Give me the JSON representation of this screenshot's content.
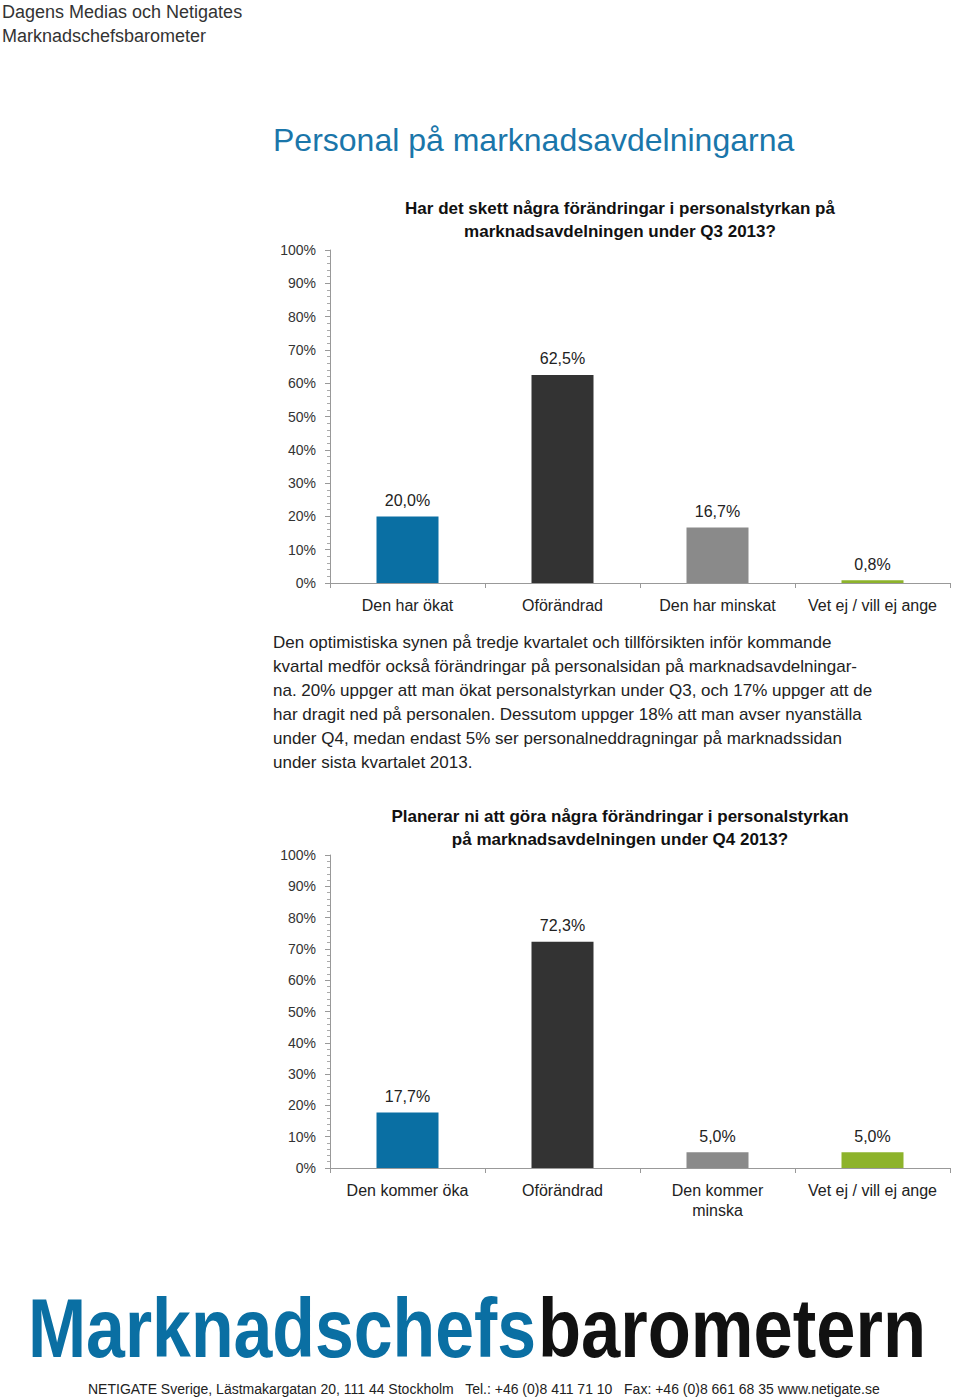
{
  "header": [
    "Dagens Medias och Netigates",
    "Marknadschefsbarometer"
  ],
  "title": "Personal på marknadsavdelningarna",
  "paragraph": [
    "Den optimistiska synen på tredje kvartalet och tillförsikten inför kommande",
    "kvartal medför också  förändringar på personalsidan på marknadsavdelningar-",
    "na. 20% uppger att man ökat personalstyrkan under Q3, och 17% uppger att de",
    "har dragit ned på personalen. Dessutom uppger 18% att man avser nyanställa",
    "under Q4, medan endast 5% ser personalneddragningar på marknadssidan",
    "under sista kvartalet 2013."
  ],
  "footer": {
    "logo": [
      "Marknadschefs",
      "barometern"
    ],
    "address": "NETIGATE Sverige, Lästmakargatan 20, 111 44 Stockholm   Tel.: +46 (0)8 411 71 10   Fax: +46 (0)8 661 68 35 www.netigate.se"
  },
  "chart_data": [
    {
      "type": "bar",
      "title": "Har det skett några förändringar i personalstyrkan på\nmarknadsavdelningen under Q3 2013?",
      "categories": [
        "Den har ökat",
        "Oförändrad",
        "Den har minskat",
        "Vet ej / vill ej ange"
      ],
      "values": [
        20.0,
        62.5,
        16.7,
        0.8
      ],
      "value_labels": [
        "20,0%",
        "62,5%",
        "16,7%",
        "0,8%"
      ],
      "colors": [
        "#0a6fa3",
        "#333333",
        "#8a8a8a",
        "#8db32b"
      ],
      "ylim": [
        0,
        100
      ],
      "yticks": [
        {
          "value": 0,
          "label": "0%"
        },
        {
          "value": 10,
          "label": "10%"
        },
        {
          "value": 20,
          "label": "20%"
        },
        {
          "value": 30,
          "label": "30%"
        },
        {
          "value": 40,
          "label": "40%"
        },
        {
          "value": 50,
          "label": "50%"
        },
        {
          "value": 60,
          "label": "60%"
        },
        {
          "value": 70,
          "label": "70%"
        },
        {
          "value": 80,
          "label": "80%"
        },
        {
          "value": 90,
          "label": "90%"
        },
        {
          "value": 100,
          "label": "100%"
        }
      ],
      "grid": false,
      "data_labels": true
    },
    {
      "type": "bar",
      "title": "Planerar ni att göra några förändringar i personalstyrkan\npå marknadsavdelningen under Q4 2013?",
      "categories": [
        "Den kommer öka",
        "Oförändrad",
        "Den kommer\nminska",
        "Vet ej / vill ej ange"
      ],
      "values": [
        17.7,
        72.3,
        5.0,
        5.0
      ],
      "value_labels": [
        "17,7%",
        "72,3%",
        "5,0%",
        "5,0%"
      ],
      "colors": [
        "#0a6fa3",
        "#333333",
        "#8a8a8a",
        "#8db32b"
      ],
      "ylim": [
        0,
        100
      ],
      "yticks": [
        {
          "value": 0,
          "label": "0%"
        },
        {
          "value": 10,
          "label": "10%"
        },
        {
          "value": 20,
          "label": "20%"
        },
        {
          "value": 30,
          "label": "30%"
        },
        {
          "value": 40,
          "label": "40%"
        },
        {
          "value": 50,
          "label": "50%"
        },
        {
          "value": 60,
          "label": "60%"
        },
        {
          "value": 70,
          "label": "70%"
        },
        {
          "value": 80,
          "label": "80%"
        },
        {
          "value": 90,
          "label": "90%"
        },
        {
          "value": 100,
          "label": "100%"
        }
      ],
      "grid": false,
      "data_labels": true
    }
  ]
}
